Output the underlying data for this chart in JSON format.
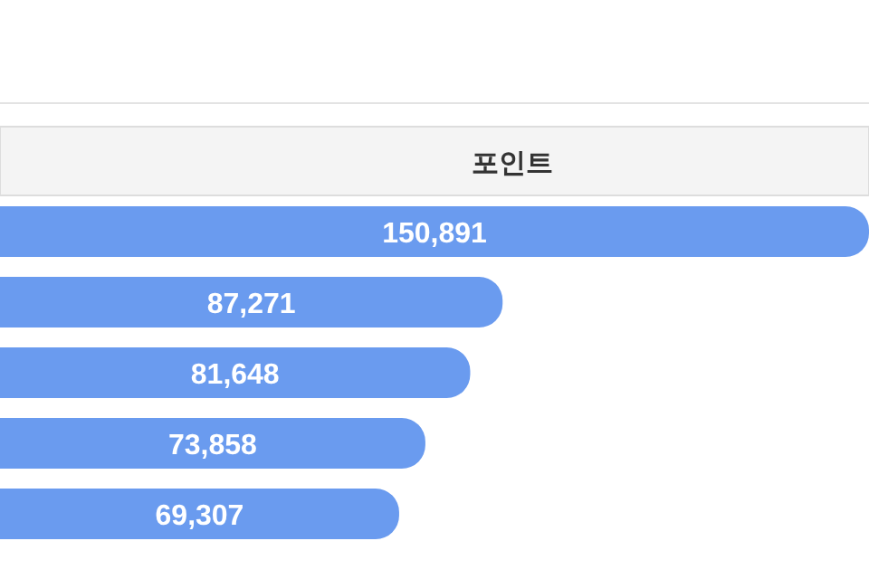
{
  "chart_data": {
    "type": "bar",
    "orientation": "horizontal",
    "title": "포인트",
    "categories": [
      null,
      null,
      null,
      null,
      null
    ],
    "values": [
      150891,
      87271,
      81648,
      73858,
      69307
    ],
    "value_labels": [
      "150,891",
      "87,271",
      "81,648",
      "73,858",
      "69,307"
    ],
    "color": "#6a9bef"
  }
}
